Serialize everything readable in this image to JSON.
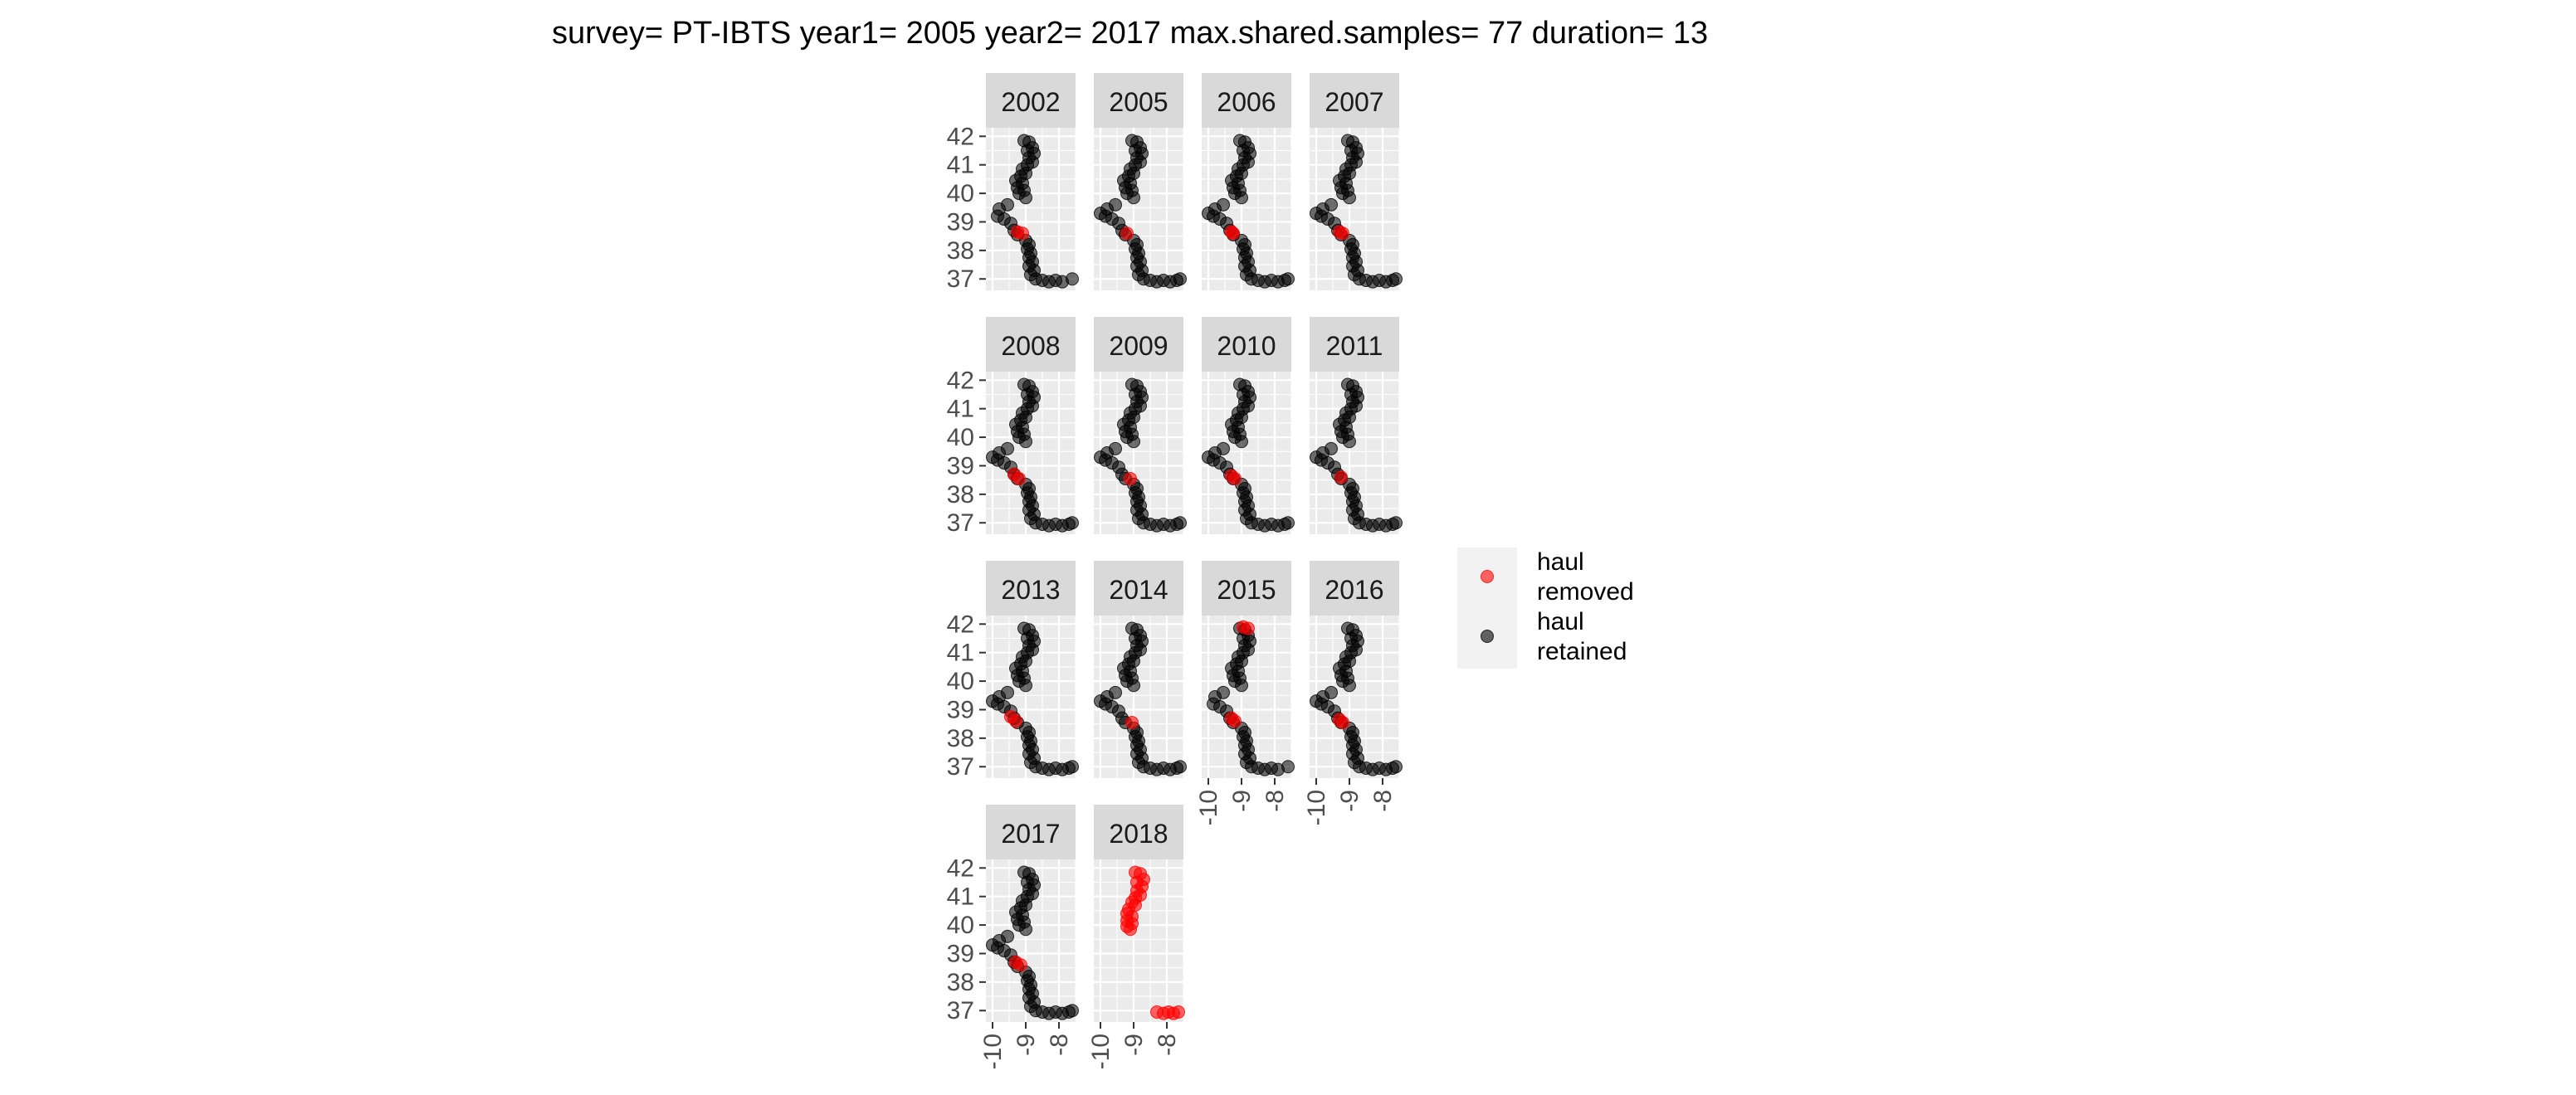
{
  "chart_data": {
    "type": "scatter",
    "title": "survey= PT-IBTS year1= 2005 year2= 2017 max.shared.samples= 77 duration= 13",
    "facet_years": [
      "2002",
      "2005",
      "2006",
      "2007",
      "2008",
      "2009",
      "2010",
      "2011",
      "2013",
      "2014",
      "2015",
      "2016",
      "2017",
      "2018"
    ],
    "xlim": [
      -10.2,
      -7.5
    ],
    "ylim": [
      36.6,
      42.3
    ],
    "x_ticks": [
      -10,
      -9,
      -8
    ],
    "x_tick_labels": [
      "-10",
      "-9",
      "-8"
    ],
    "y_ticks": [
      37,
      38,
      39,
      40,
      41,
      42
    ],
    "y_tick_labels": [
      "37",
      "38",
      "39",
      "40",
      "41",
      "42"
    ],
    "grid": true,
    "legend_position": "right",
    "legend": [
      {
        "key": "removed",
        "label_lines": [
          "haul",
          "removed"
        ],
        "color": "#ff0000"
      },
      {
        "key": "retained",
        "label_lines": [
          "haul",
          "retained"
        ],
        "color": "#000000"
      }
    ],
    "base_track": [
      [
        -9.05,
        41.85
      ],
      [
        -8.9,
        41.8
      ],
      [
        -8.8,
        41.6
      ],
      [
        -8.95,
        41.5
      ],
      [
        -8.75,
        41.4
      ],
      [
        -8.9,
        41.25
      ],
      [
        -8.8,
        41.1
      ],
      [
        -8.95,
        41.0
      ],
      [
        -9.1,
        40.85
      ],
      [
        -9.0,
        40.7
      ],
      [
        -9.15,
        40.6
      ],
      [
        -9.3,
        40.45
      ],
      [
        -9.1,
        40.35
      ],
      [
        -9.25,
        40.2
      ],
      [
        -9.05,
        40.1
      ],
      [
        -9.2,
        40.0
      ],
      [
        -9.0,
        39.85
      ],
      [
        -9.55,
        39.6
      ],
      [
        -9.8,
        39.45
      ],
      [
        -10.0,
        39.3
      ],
      [
        -9.85,
        39.2
      ],
      [
        -9.65,
        39.1
      ],
      [
        -9.45,
        38.95
      ],
      [
        -9.35,
        38.7
      ],
      [
        -9.25,
        38.55
      ],
      [
        -9.0,
        38.35
      ],
      [
        -8.9,
        38.2
      ],
      [
        -8.95,
        38.05
      ],
      [
        -8.85,
        37.9
      ],
      [
        -8.9,
        37.75
      ],
      [
        -8.8,
        37.6
      ],
      [
        -8.9,
        37.45
      ],
      [
        -8.75,
        37.3
      ],
      [
        -8.85,
        37.15
      ],
      [
        -8.7,
        37.0
      ],
      [
        -8.5,
        36.95
      ],
      [
        -8.3,
        36.9
      ],
      [
        -8.1,
        36.95
      ],
      [
        -7.9,
        36.9
      ],
      [
        -7.7,
        36.95
      ],
      [
        -7.6,
        37.0
      ]
    ],
    "series": [
      {
        "year": "2002",
        "retained_share": 0.95,
        "removed": [
          [
            -9.25,
            38.65
          ],
          [
            -9.1,
            38.6
          ]
        ]
      },
      {
        "year": "2005",
        "retained_share": 1.0,
        "removed": [
          [
            -9.2,
            38.6
          ]
        ]
      },
      {
        "year": "2006",
        "retained_share": 1.0,
        "removed": [
          [
            -9.3,
            38.65
          ],
          [
            -9.25,
            38.6
          ]
        ]
      },
      {
        "year": "2007",
        "retained_share": 1.0,
        "removed": [
          [
            -9.3,
            38.65
          ],
          [
            -9.2,
            38.6
          ]
        ]
      },
      {
        "year": "2008",
        "retained_share": 1.0,
        "removed": [
          [
            -9.35,
            38.7
          ],
          [
            -9.2,
            38.55
          ]
        ]
      },
      {
        "year": "2009",
        "retained_share": 1.0,
        "removed": [
          [
            -9.1,
            38.55
          ]
        ]
      },
      {
        "year": "2010",
        "retained_share": 1.0,
        "removed": [
          [
            -9.3,
            38.65
          ],
          [
            -9.2,
            38.55
          ]
        ]
      },
      {
        "year": "2011",
        "retained_share": 1.0,
        "removed": [
          [
            -9.25,
            38.6
          ]
        ]
      },
      {
        "year": "2013",
        "retained_share": 1.0,
        "removed": [
          [
            -9.45,
            38.75
          ],
          [
            -9.3,
            38.6
          ]
        ]
      },
      {
        "year": "2014",
        "retained_share": 1.0,
        "removed": [
          [
            -9.05,
            38.55
          ]
        ]
      },
      {
        "year": "2015",
        "retained_share": 0.95,
        "removed": [
          [
            -8.95,
            41.9
          ],
          [
            -8.8,
            41.85
          ],
          [
            -9.3,
            38.7
          ],
          [
            -9.2,
            38.6
          ]
        ]
      },
      {
        "year": "2016",
        "retained_share": 1.0,
        "removed": [
          [
            -9.3,
            38.65
          ],
          [
            -9.2,
            38.55
          ]
        ]
      },
      {
        "year": "2017",
        "retained_share": 1.0,
        "removed": [
          [
            -9.3,
            38.7
          ],
          [
            -9.15,
            38.6
          ]
        ]
      },
      {
        "year": "2018",
        "retained_share": 0.0,
        "removed": [
          [
            -8.95,
            41.85
          ],
          [
            -8.8,
            41.8
          ],
          [
            -8.7,
            41.6
          ],
          [
            -8.9,
            41.5
          ],
          [
            -8.75,
            41.35
          ],
          [
            -8.9,
            41.2
          ],
          [
            -8.8,
            41.05
          ],
          [
            -8.95,
            40.95
          ],
          [
            -9.05,
            40.8
          ],
          [
            -8.95,
            40.7
          ],
          [
            -9.15,
            40.55
          ],
          [
            -9.2,
            40.4
          ],
          [
            -9.05,
            40.3
          ],
          [
            -9.2,
            40.15
          ],
          [
            -9.05,
            40.05
          ],
          [
            -9.2,
            39.95
          ],
          [
            -9.1,
            39.85
          ],
          [
            -8.3,
            36.95
          ],
          [
            -8.1,
            36.9
          ],
          [
            -7.95,
            36.95
          ],
          [
            -7.8,
            36.9
          ],
          [
            -7.65,
            36.95
          ]
        ]
      }
    ]
  }
}
